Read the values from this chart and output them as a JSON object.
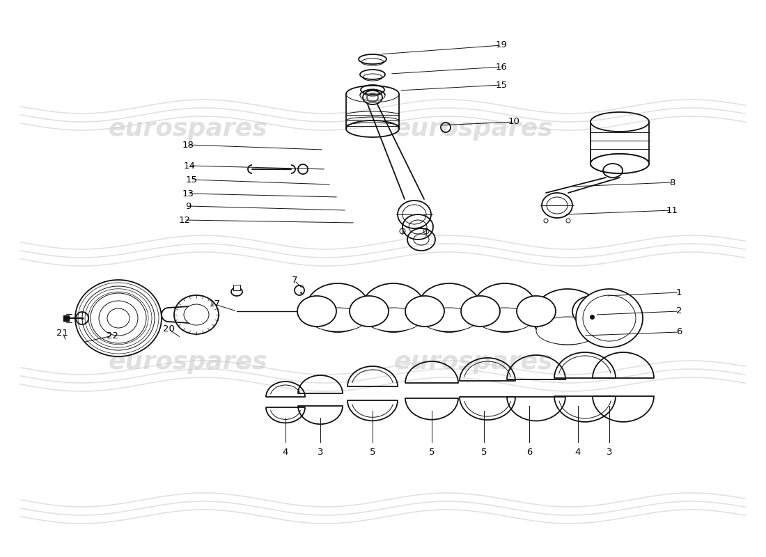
{
  "bg_color": "#ffffff",
  "line_color": "#111111",
  "label_color": "#000000",
  "label_fontsize": 9.5,
  "watermark_color": "#c8c8c8",
  "watermark_fontsize": 26,
  "watermark_text": "eurospares",
  "lw_main": 1.3,
  "lw_thin": 0.7,
  "lw_thick": 2.0,
  "upper_callouts": [
    [
      "19",
      620,
      75,
      710,
      68
    ],
    [
      "16",
      620,
      105,
      710,
      98
    ],
    [
      "15",
      620,
      128,
      710,
      122
    ],
    [
      "10",
      638,
      178,
      720,
      175
    ],
    [
      "8",
      850,
      270,
      950,
      264
    ],
    [
      "11",
      840,
      310,
      950,
      305
    ],
    [
      "18",
      345,
      210,
      265,
      205
    ],
    [
      "14",
      380,
      240,
      270,
      235
    ],
    [
      "15",
      395,
      265,
      275,
      260
    ],
    [
      "13",
      410,
      285,
      270,
      280
    ],
    [
      "9",
      430,
      305,
      270,
      300
    ],
    [
      "12",
      440,
      325,
      265,
      320
    ]
  ],
  "lower_callouts_right": [
    [
      "1",
      875,
      430,
      975,
      425
    ],
    [
      "2",
      860,
      458,
      975,
      452
    ],
    [
      "6",
      840,
      488,
      975,
      482
    ]
  ],
  "lower_callouts_left": [
    [
      "7",
      445,
      420,
      420,
      408
    ],
    [
      "17",
      345,
      450,
      310,
      440
    ],
    [
      "20",
      255,
      490,
      240,
      475
    ],
    [
      "22",
      165,
      510,
      175,
      490
    ],
    [
      "21",
      100,
      510,
      95,
      490
    ]
  ],
  "bearing_labels": [
    [
      "4",
      410,
      600,
      410,
      635
    ],
    [
      "3",
      460,
      600,
      460,
      635
    ],
    [
      "5",
      535,
      590,
      535,
      635
    ],
    [
      "5",
      620,
      590,
      620,
      635
    ],
    [
      "5",
      695,
      590,
      695,
      635
    ],
    [
      "6",
      760,
      583,
      760,
      635
    ],
    [
      "4",
      830,
      583,
      830,
      635
    ],
    [
      "3",
      875,
      583,
      875,
      635
    ]
  ]
}
